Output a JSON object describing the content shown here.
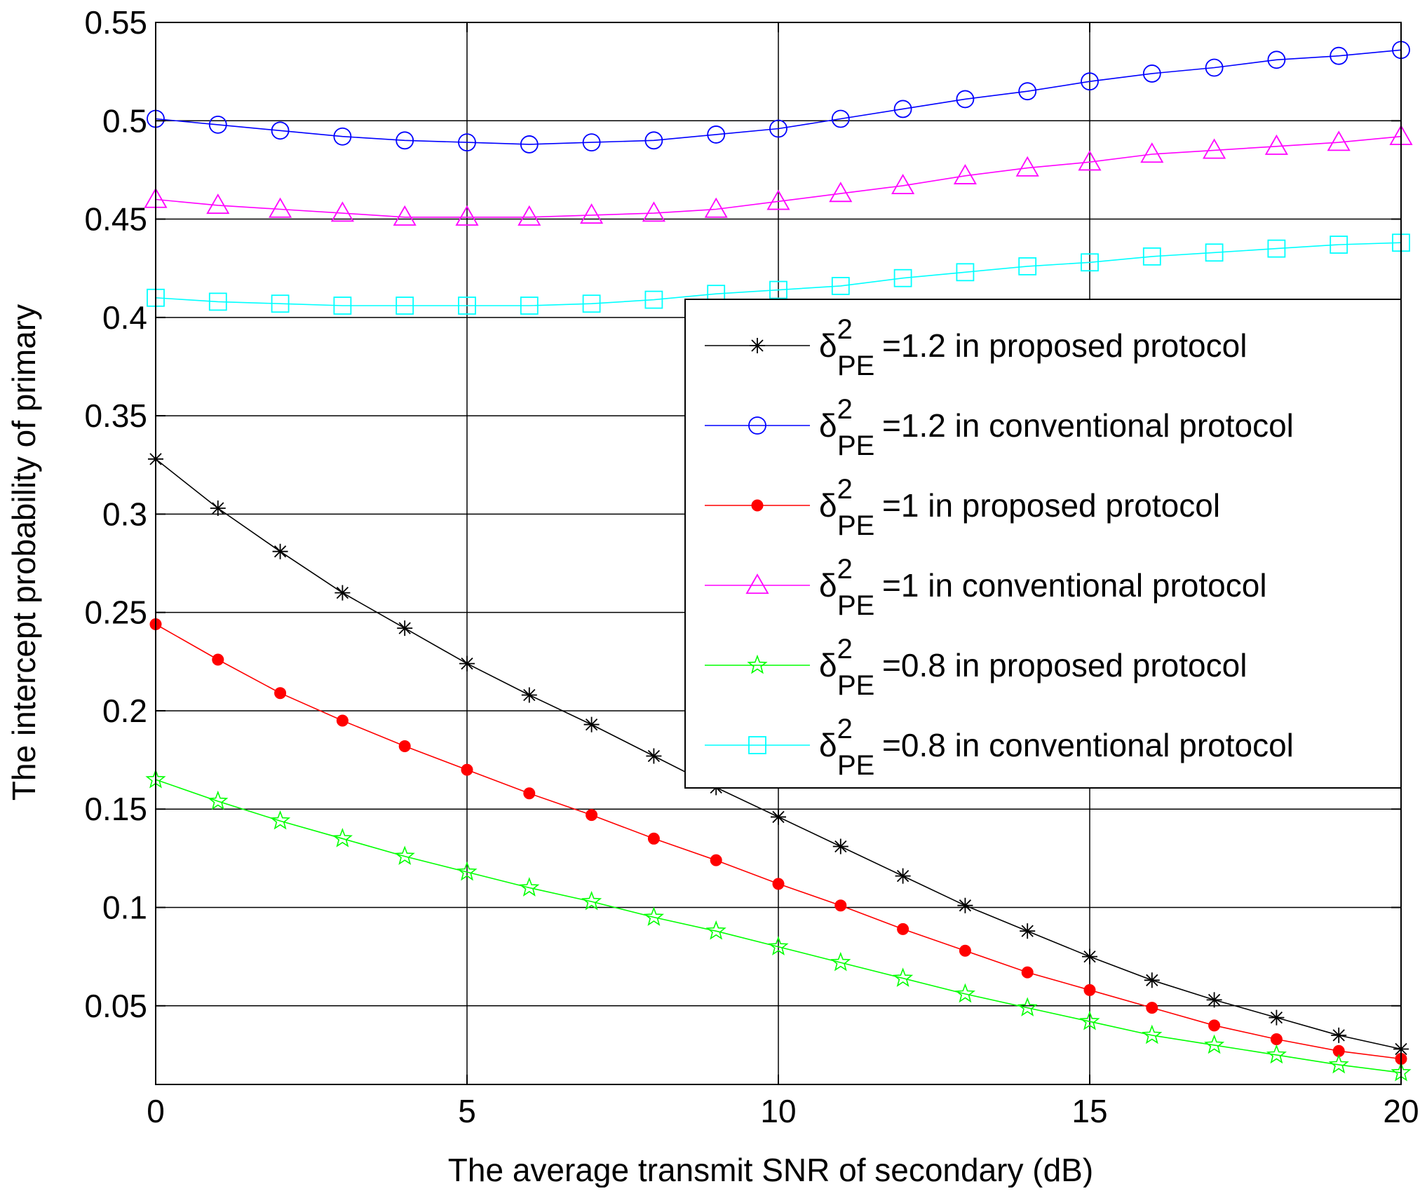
{
  "chart_data": {
    "type": "line",
    "title": "",
    "xlabel": "The average transmit SNR of secondary (dB)",
    "ylabel": "The intercept probability of primary",
    "xlim": [
      0,
      20
    ],
    "ylim": [
      0.01,
      0.55
    ],
    "xticks": [
      0,
      5,
      10,
      15,
      20
    ],
    "xtick_labels": [
      "0",
      "5",
      "10",
      "15",
      "20"
    ],
    "yticks": [
      0.05,
      0.1,
      0.15,
      0.2,
      0.25,
      0.3,
      0.35,
      0.4,
      0.45,
      0.5,
      0.55
    ],
    "ytick_labels": [
      "0.05",
      "0.1",
      "0.15",
      "0.2",
      "0.25",
      "0.3",
      "0.35",
      "0.4",
      "0.45",
      "0.5",
      "0.55"
    ],
    "grid": true,
    "legend_position": "center-right",
    "x": [
      0,
      1,
      2,
      3,
      4,
      5,
      6,
      7,
      8,
      9,
      10,
      11,
      12,
      13,
      14,
      15,
      16,
      17,
      18,
      19,
      20
    ],
    "series": [
      {
        "name": "δ²PE=1.2 in proposed protocol",
        "symbol": "δ",
        "sup": "2",
        "sub": "PE",
        "rest": "=1.2 in proposed protocol",
        "color": "#000000",
        "marker": "star",
        "values": [
          0.328,
          0.303,
          0.281,
          0.26,
          0.242,
          0.224,
          0.208,
          0.193,
          0.177,
          0.161,
          0.146,
          0.131,
          0.116,
          0.101,
          0.088,
          0.075,
          0.063,
          0.053,
          0.044,
          0.035,
          0.028
        ]
      },
      {
        "name": "δ²PE=1.2 in conventional protocol",
        "symbol": "δ",
        "sup": "2",
        "sub": "PE",
        "rest": "=1.2 in conventional protocol",
        "color": "#0000ff",
        "marker": "circle",
        "values": [
          0.501,
          0.498,
          0.495,
          0.492,
          0.49,
          0.489,
          0.488,
          0.489,
          0.49,
          0.493,
          0.496,
          0.501,
          0.506,
          0.511,
          0.515,
          0.52,
          0.524,
          0.527,
          0.531,
          0.533,
          0.536
        ]
      },
      {
        "name": "δ²PE=1 in proposed protocol",
        "symbol": "δ",
        "sup": "2",
        "sub": "PE",
        "rest": "=1 in proposed protocol",
        "color": "#ff0000",
        "marker": "dot",
        "values": [
          0.244,
          0.226,
          0.209,
          0.195,
          0.182,
          0.17,
          0.158,
          0.147,
          0.135,
          0.124,
          0.112,
          0.101,
          0.089,
          0.078,
          0.067,
          0.058,
          0.049,
          0.04,
          0.033,
          0.027,
          0.023
        ]
      },
      {
        "name": "δ²PE=1 in conventional protocol",
        "symbol": "δ",
        "sup": "2",
        "sub": "PE",
        "rest": "=1 in conventional protocol",
        "color": "#ff00ff",
        "marker": "triangle",
        "values": [
          0.46,
          0.457,
          0.455,
          0.453,
          0.451,
          0.451,
          0.451,
          0.452,
          0.453,
          0.455,
          0.459,
          0.463,
          0.467,
          0.472,
          0.476,
          0.479,
          0.483,
          0.485,
          0.487,
          0.489,
          0.492
        ]
      },
      {
        "name": "δ²PE=0.8 in proposed protocol",
        "symbol": "δ",
        "sup": "2",
        "sub": "PE",
        "rest": "=0.8 in proposed protocol",
        "color": "#00ff00",
        "marker": "pentagram",
        "values": [
          0.165,
          0.154,
          0.144,
          0.135,
          0.126,
          0.118,
          0.11,
          0.103,
          0.095,
          0.088,
          0.08,
          0.072,
          0.064,
          0.056,
          0.049,
          0.042,
          0.035,
          0.03,
          0.025,
          0.02,
          0.016
        ]
      },
      {
        "name": "δ²PE=0.8 in conventional protocol",
        "symbol": "δ",
        "sup": "2",
        "sub": "PE",
        "rest": "=0.8 in conventional protocol",
        "color": "#00ffff",
        "marker": "square",
        "values": [
          0.41,
          0.408,
          0.407,
          0.406,
          0.406,
          0.406,
          0.406,
          0.407,
          0.409,
          0.412,
          0.414,
          0.416,
          0.42,
          0.423,
          0.426,
          0.428,
          0.431,
          0.433,
          0.435,
          0.437,
          0.438
        ]
      }
    ]
  }
}
